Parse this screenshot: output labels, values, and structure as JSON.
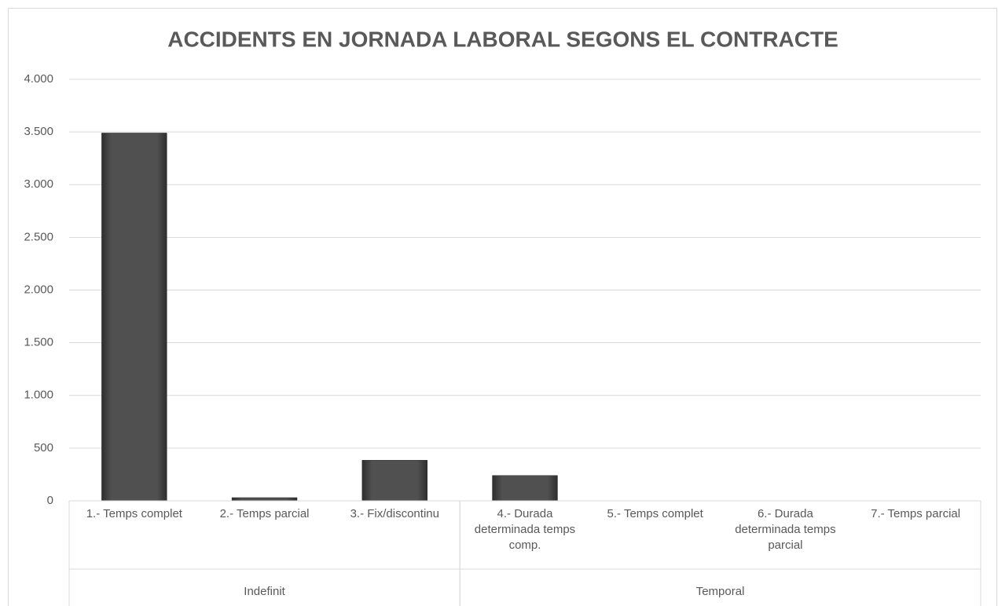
{
  "chart_data": {
    "type": "bar",
    "title": "ACCIDENTS EN JORNADA LABORAL SEGONS EL CONTRACTE",
    "categories": [
      "1.- Temps complet",
      "2.- Temps parcial",
      "3.- Fix/discontinu",
      "4.- Durada determinada temps comp.",
      "5.- Temps complet",
      "6.- Durada determinada temps parcial",
      "7.- Temps parcial"
    ],
    "groups": [
      "Indefinit",
      "Indefinit",
      "Indefinit",
      "Temporal",
      "Temporal",
      "Temporal",
      "Temporal"
    ],
    "values": [
      3490,
      30,
      385,
      240,
      0,
      0,
      0
    ],
    "color": "#474747",
    "ylim": [
      0,
      4000
    ],
    "yticks": [
      0,
      500,
      {
        "value": 1000,
        "label": "1.000"
      },
      {
        "value": 1500,
        "label": "1.500"
      },
      {
        "value": 2000,
        "label": "2.000"
      },
      {
        "value": 2500,
        "label": "2.500"
      },
      {
        "value": 3000,
        "label": "3.000"
      },
      {
        "value": 3500,
        "label": "3.500"
      },
      {
        "value": 4000,
        "label": "4.000"
      }
    ],
    "grid": true
  }
}
